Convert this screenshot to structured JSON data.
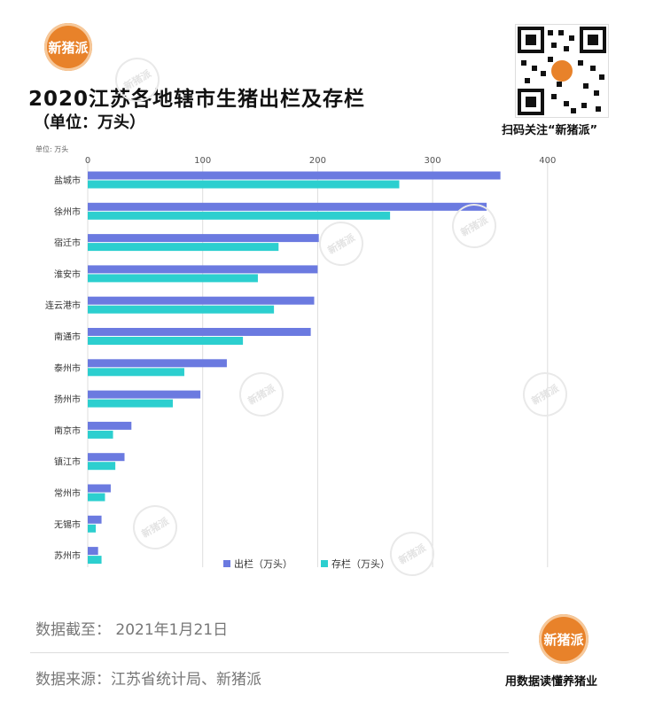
{
  "brand": {
    "name": "新猪派",
    "slogan": "用数据读懂养猪业",
    "qr_caption": "扫码关注“新猪派”"
  },
  "header": {
    "title": "2020江苏各地辖市生猪出栏及存栏",
    "subtitle": "（单位：万头）",
    "unit_small": "单位: 万头"
  },
  "footer": {
    "date_line": "数据截至：  2021年1月21日",
    "source_line": "数据来源：江苏省统计局、新猪派"
  },
  "colors": {
    "series1": "#6b7ae0",
    "series2": "#2ccfcf",
    "grid": "#dddddd",
    "brand": "#e8822a"
  },
  "chart_data": {
    "type": "bar",
    "orientation": "horizontal",
    "categories": [
      "盐城市",
      "徐州市",
      "宿迁市",
      "淮安市",
      "连云港市",
      "南通市",
      "泰州市",
      "扬州市",
      "南京市",
      "镇江市",
      "常州市",
      "无锡市",
      "苏州市"
    ],
    "series": [
      {
        "name": "出栏（万头）",
        "color": "#6b7ae0",
        "values": [
          359,
          347,
          201,
          200,
          197,
          194,
          121,
          98,
          38,
          32,
          20,
          12,
          9
        ]
      },
      {
        "name": "存栏（万头）",
        "color": "#2ccfcf",
        "values": [
          271,
          263,
          166,
          148,
          162,
          135,
          84,
          74,
          22,
          24,
          15,
          7,
          12
        ]
      }
    ],
    "ticks": [
      0,
      100,
      200,
      300,
      400
    ],
    "xlim": [
      0,
      400
    ],
    "grid": true,
    "legend_position": "bottom-right"
  }
}
